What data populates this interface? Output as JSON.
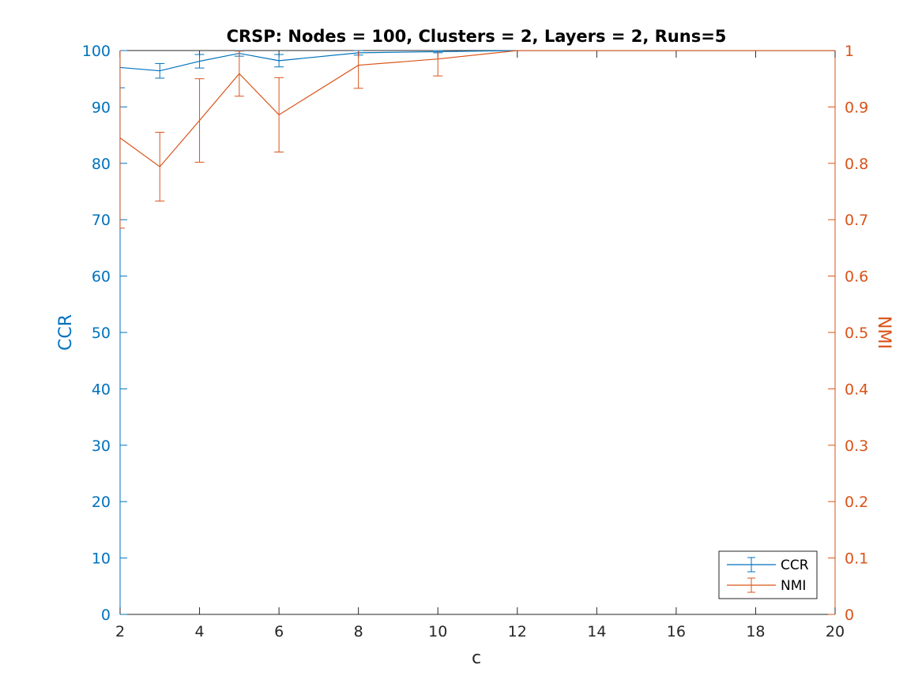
{
  "chart_data": {
    "type": "line",
    "title": "CRSP: Nodes = 100, Clusters = 2, Layers = 2, Runs=5",
    "xlabel": "c",
    "ylabel_left": "CCR",
    "ylabel_right": "NMI",
    "xlim": [
      2,
      20
    ],
    "ylim_left": [
      0,
      100
    ],
    "ylim_right": [
      0,
      1
    ],
    "xticks": [
      2,
      4,
      6,
      8,
      10,
      12,
      14,
      16,
      18,
      20
    ],
    "yticks_left": [
      0,
      10,
      20,
      30,
      40,
      50,
      60,
      70,
      80,
      90,
      100
    ],
    "yticks_right": [
      0,
      0.1,
      0.2,
      0.3,
      0.4,
      0.5,
      0.6,
      0.7,
      0.8,
      0.9,
      1
    ],
    "ytick_labels_right": [
      "0",
      "0.1",
      "0.2",
      "0.3",
      "0.4",
      "0.5",
      "0.6",
      "0.7",
      "0.8",
      "0.9",
      "1"
    ],
    "grid": false,
    "legend": "bottom-right",
    "colors": {
      "ccr": "#0072BD",
      "nmi": "#D95319"
    },
    "series": [
      {
        "name": "CCR",
        "axis": "left",
        "x": [
          2,
          3,
          4,
          5,
          6,
          8,
          10,
          12,
          14,
          16,
          18,
          20
        ],
        "y": [
          97,
          96.4,
          98.1,
          99.5,
          98.2,
          99.6,
          99.8,
          100,
          100,
          100,
          100,
          100
        ],
        "err": [
          3.6,
          1.3,
          1.2,
          0.5,
          1.1,
          0.4,
          0.2,
          0,
          0,
          0,
          0,
          0
        ]
      },
      {
        "name": "NMI",
        "axis": "right",
        "x": [
          2,
          3,
          4,
          5,
          6,
          8,
          10,
          12,
          14,
          16,
          18,
          20
        ],
        "y": [
          0.845,
          0.794,
          0.876,
          0.959,
          0.886,
          0.974,
          0.985,
          1,
          1,
          1,
          1,
          1
        ],
        "err": [
          0.16,
          0.061,
          0.074,
          0.04,
          0.066,
          0.041,
          0.03,
          0,
          0,
          0,
          0,
          0
        ]
      }
    ]
  }
}
